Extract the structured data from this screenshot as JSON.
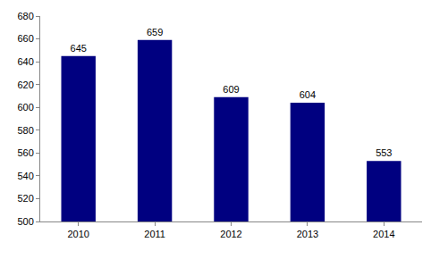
{
  "chart_data": {
    "type": "bar",
    "categories": [
      "2010",
      "2011",
      "2012",
      "2013",
      "2014"
    ],
    "values": [
      645,
      659,
      609,
      604,
      553
    ],
    "color": "#000080",
    "ylim": [
      500,
      680
    ],
    "yticks": [
      500,
      520,
      540,
      560,
      580,
      600,
      620,
      640,
      660,
      680
    ],
    "grid": false,
    "data_labels": true
  }
}
